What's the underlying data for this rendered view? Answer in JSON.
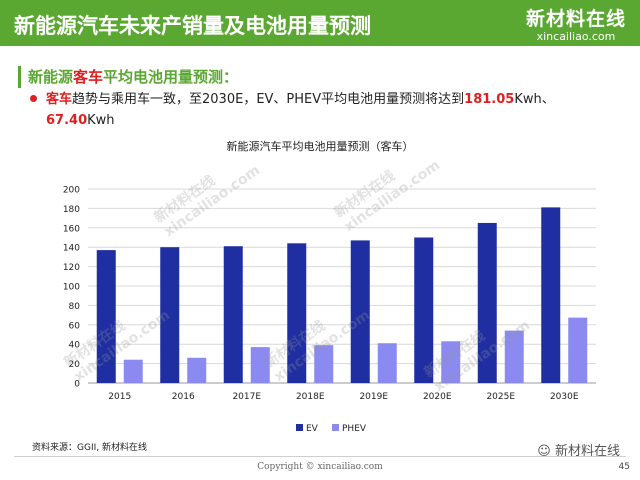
{
  "header": {
    "title": "新能源汽车未来产销量及电池用量预测"
  },
  "logo": {
    "cn": "新材料在线",
    "en": "xincailiao.com"
  },
  "subtitle": {
    "prefix": "新能源",
    "highlight": "客车",
    "suffix": "平均电池用量预测："
  },
  "bullet": {
    "lead": "客车",
    "text": "趋势与乘用车一致，至2030E，EV、PHEV平均电池用量预测将达到",
    "value1": "181.05",
    "unit1": "Kwh、",
    "value2": "67.40",
    "unit2": "Kwh"
  },
  "chart_data": {
    "type": "bar",
    "title": "新能源汽车平均电池用量预测（客车）",
    "categories": [
      "2015",
      "2016",
      "2017E",
      "2018E",
      "2019E",
      "2020E",
      "2025E",
      "2030E"
    ],
    "series": [
      {
        "name": "EV",
        "color": "#1f2ea0",
        "values": [
          137,
          140,
          141,
          144,
          147,
          150,
          165,
          181.05
        ]
      },
      {
        "name": "PHEV",
        "color": "#8a8af0",
        "values": [
          24,
          26,
          37,
          39,
          41,
          43,
          54,
          67.4
        ]
      }
    ],
    "ylim": [
      0,
      200
    ],
    "yticks": [
      0,
      20,
      40,
      60,
      80,
      100,
      120,
      140,
      160,
      180,
      200
    ],
    "grid": true,
    "legend": "bottom"
  },
  "footer": {
    "source": "资料来源：GGII, 新材料在线",
    "wechat": "新材料在线",
    "copyright": "Copyright © xincailiao.com",
    "page": "45"
  },
  "watermark": {
    "cn": "新材料在线",
    "en": "xincailiao.com"
  }
}
